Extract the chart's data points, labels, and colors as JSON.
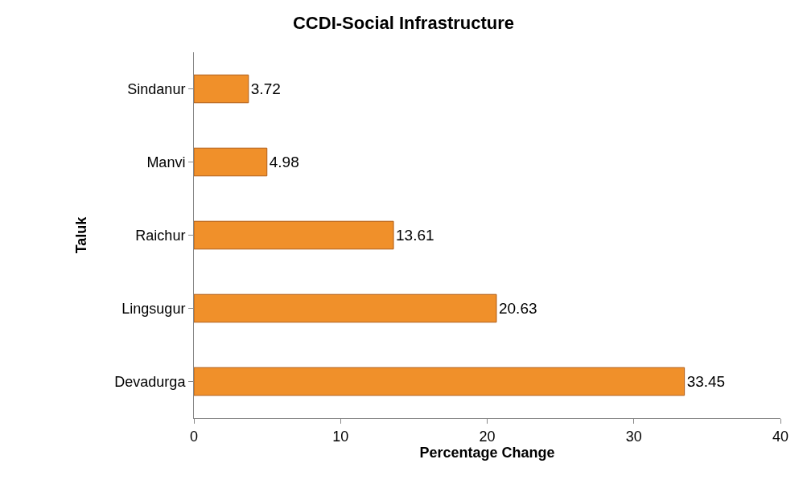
{
  "chart_data": {
    "type": "bar",
    "title": "CCDI-Social Infrastructure",
    "xlabel": "Percentage Change",
    "ylabel": "Taluk",
    "orientation": "horizontal",
    "categories": [
      "Sindanur",
      "Manvi",
      "Raichur",
      "Lingsugur",
      "Devadurga"
    ],
    "values": [
      3.72,
      4.98,
      13.61,
      20.63,
      33.45
    ],
    "color": "#f0902a",
    "xlim": [
      0,
      40
    ],
    "xticks": [
      0,
      10,
      20,
      30,
      40
    ],
    "data_labels": true
  }
}
